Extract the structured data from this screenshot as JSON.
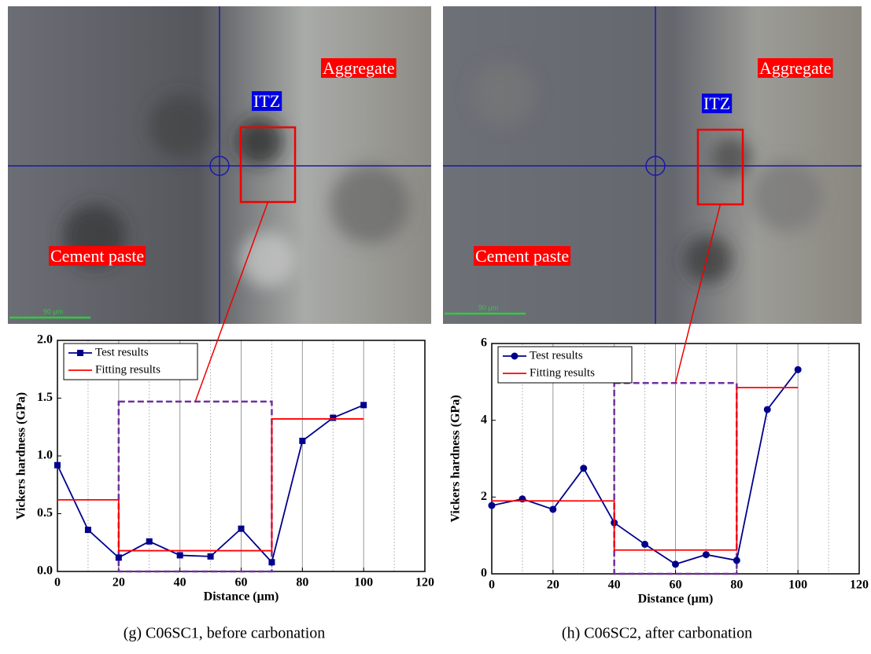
{
  "chart_data": [
    {
      "type": "line",
      "caption": "(g)  C06SC1, before carbonation",
      "photo_labels": [
        "Aggregate",
        "ITZ",
        "Cement paste",
        "90 μm"
      ],
      "x_label": "Distance (μm)",
      "y_label": "Vickers hardness (GPa)",
      "x": [
        0,
        10,
        20,
        30,
        40,
        50,
        60,
        70,
        80,
        90,
        100
      ],
      "series": [
        {
          "name": "Test results",
          "color": "#00008b",
          "marker": "square",
          "values": [
            0.92,
            0.36,
            0.12,
            0.26,
            0.14,
            0.13,
            0.37,
            0.08,
            1.13,
            1.33,
            1.44
          ]
        },
        {
          "name": "Fitting results",
          "color": "#ff0000",
          "x": [
            0,
            20,
            20,
            70,
            70,
            100
          ],
          "values": [
            0.62,
            0.62,
            0.18,
            0.18,
            1.32,
            1.32
          ]
        }
      ],
      "highlight": {
        "xlim": [
          20,
          70
        ],
        "ylim": [
          0,
          1.47
        ],
        "color": "#7030a0"
      },
      "xlim": [
        0,
        120
      ],
      "xticks": [
        0,
        20,
        40,
        60,
        80,
        100,
        120
      ],
      "xminor": [
        10,
        30,
        50,
        70,
        90,
        110
      ],
      "ylim": [
        0,
        2
      ],
      "yticks": [
        {
          "value": 0,
          "label": "0.0"
        },
        {
          "value": 0.5,
          "label": "0.5"
        },
        {
          "value": 1,
          "label": "1.0"
        },
        {
          "value": 1.5,
          "label": "1.5"
        },
        {
          "value": 2,
          "label": "2.0"
        }
      ]
    },
    {
      "type": "line",
      "caption": "(h)  C06SC2, after carbonation",
      "photo_labels": [
        "Aggregate",
        "ITZ",
        "Cement paste",
        "90 μm"
      ],
      "x_label": "Distance (μm)",
      "y_label": "Vickers hardness (GPa)",
      "x": [
        0,
        10,
        20,
        30,
        40,
        50,
        60,
        70,
        80,
        90,
        100
      ],
      "series": [
        {
          "name": "Test results",
          "color": "#00008b",
          "marker": "circle",
          "values": [
            1.78,
            1.95,
            1.68,
            2.75,
            1.33,
            0.77,
            0.25,
            0.5,
            0.35,
            4.28,
            5.32
          ]
        },
        {
          "name": "Fitting results",
          "color": "#ff0000",
          "x": [
            0,
            40,
            40,
            80,
            80,
            100
          ],
          "values": [
            1.9,
            1.9,
            0.62,
            0.62,
            4.85,
            4.85
          ]
        }
      ],
      "highlight": {
        "xlim": [
          40,
          80
        ],
        "ylim": [
          0,
          4.97
        ],
        "color": "#7030a0"
      },
      "xlim": [
        0,
        120
      ],
      "xticks": [
        0,
        20,
        40,
        60,
        80,
        100,
        120
      ],
      "xminor": [
        10,
        30,
        50,
        70,
        90,
        110
      ],
      "ylim": [
        0,
        6
      ],
      "yticks": [
        0,
        2,
        4,
        6
      ]
    }
  ]
}
